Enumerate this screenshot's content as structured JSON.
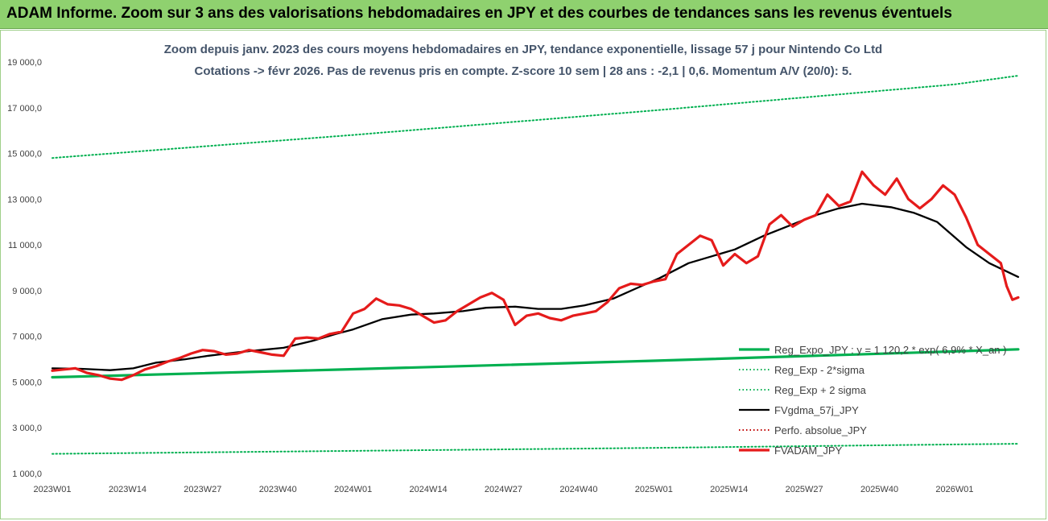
{
  "header": {
    "title": "ADAM Informe. Zoom sur 3 ans des valorisations hebdomadaires en JPY et des courbes de tendances sans les revenus éventuels"
  },
  "chart_data": {
    "type": "line",
    "title": "Zoom depuis janv. 2023 des cours moyens hebdomadaires en JPY, tendance exponentielle, lissage 57 j pour Nintendo Co Ltd",
    "subtitle": "Cotations -> févr 2026. Pas de revenus pris en compte. Z-score 10 sem | 28 ans : -2,1 | 0,6. Momentum A/V (20/0): 5.",
    "x_ticks": [
      "2023W01",
      "2023W14",
      "2023W27",
      "2023W40",
      "2024W01",
      "2024W14",
      "2024W27",
      "2024W40",
      "2025W01",
      "2025W14",
      "2025W27",
      "2025W40",
      "2026W01"
    ],
    "y_ticks": [
      "1 000,0",
      "3 000,0",
      "5 000,0",
      "7 000,0",
      "9 000,0",
      "11 000,0",
      "13 000,0",
      "15 000,0",
      "17 000,0",
      "19 000,0"
    ],
    "ylim": [
      1000,
      19000
    ],
    "grid": false,
    "legend_position": "bottom-right",
    "series": [
      {
        "name": "Reg_Expo_JPY : y = 1 120,2 * exp( 6,9% * X_an )",
        "color": "#00b050",
        "style": "solid-thick",
        "values": [
          [
            0,
            5210
          ],
          [
            52,
            5560
          ],
          [
            104,
            5930
          ],
          [
            156,
            6340
          ],
          [
            167,
            6430
          ]
        ]
      },
      {
        "name": "Reg_Exp - 2*sigma",
        "color": "#00b050",
        "style": "dotted",
        "values": [
          [
            0,
            1860
          ],
          [
            52,
            1990
          ],
          [
            104,
            2120
          ],
          [
            156,
            2270
          ],
          [
            167,
            2300
          ]
        ]
      },
      {
        "name": "Reg_Exp + 2 sigma",
        "color": "#00b050",
        "style": "dotted",
        "values": [
          [
            0,
            14800
          ],
          [
            52,
            15810
          ],
          [
            104,
            16880
          ],
          [
            156,
            18020
          ],
          [
            167,
            18400
          ]
        ]
      },
      {
        "name": "FVgdma_57j_JPY",
        "color": "#000000",
        "style": "solid",
        "values": [
          [
            0,
            5600
          ],
          [
            5,
            5580
          ],
          [
            10,
            5520
          ],
          [
            14,
            5600
          ],
          [
            18,
            5850
          ],
          [
            23,
            6000
          ],
          [
            27,
            6150
          ],
          [
            32,
            6300
          ],
          [
            36,
            6400
          ],
          [
            40,
            6500
          ],
          [
            45,
            6800
          ],
          [
            49,
            7100
          ],
          [
            52,
            7300
          ],
          [
            57,
            7750
          ],
          [
            62,
            7950
          ],
          [
            66,
            8000
          ],
          [
            71,
            8100
          ],
          [
            75,
            8250
          ],
          [
            80,
            8300
          ],
          [
            84,
            8200
          ],
          [
            88,
            8200
          ],
          [
            92,
            8350
          ],
          [
            97,
            8650
          ],
          [
            101,
            9100
          ],
          [
            105,
            9550
          ],
          [
            110,
            10200
          ],
          [
            114,
            10500
          ],
          [
            118,
            10800
          ],
          [
            123,
            11400
          ],
          [
            127,
            11800
          ],
          [
            132,
            12300
          ],
          [
            136,
            12600
          ],
          [
            140,
            12800
          ],
          [
            145,
            12650
          ],
          [
            149,
            12400
          ],
          [
            153,
            12000
          ],
          [
            158,
            10900
          ],
          [
            162,
            10200
          ],
          [
            167,
            9600
          ]
        ]
      },
      {
        "name": "Perfo. absolue_JPY",
        "color": "#c00000",
        "style": "dotted",
        "values": []
      },
      {
        "name": "FVADAM_JPY",
        "color": "#e51b1b",
        "style": "solid-thick",
        "values": [
          [
            0,
            5500
          ],
          [
            2,
            5550
          ],
          [
            4,
            5600
          ],
          [
            6,
            5400
          ],
          [
            8,
            5300
          ],
          [
            10,
            5150
          ],
          [
            12,
            5100
          ],
          [
            14,
            5300
          ],
          [
            16,
            5550
          ],
          [
            18,
            5700
          ],
          [
            20,
            5900
          ],
          [
            22,
            6050
          ],
          [
            24,
            6250
          ],
          [
            26,
            6400
          ],
          [
            28,
            6350
          ],
          [
            30,
            6200
          ],
          [
            32,
            6250
          ],
          [
            34,
            6400
          ],
          [
            36,
            6300
          ],
          [
            38,
            6200
          ],
          [
            40,
            6150
          ],
          [
            42,
            6900
          ],
          [
            44,
            6950
          ],
          [
            46,
            6900
          ],
          [
            48,
            7100
          ],
          [
            50,
            7200
          ],
          [
            52,
            8000
          ],
          [
            54,
            8200
          ],
          [
            56,
            8650
          ],
          [
            58,
            8400
          ],
          [
            60,
            8350
          ],
          [
            62,
            8200
          ],
          [
            64,
            7900
          ],
          [
            66,
            7600
          ],
          [
            68,
            7700
          ],
          [
            70,
            8100
          ],
          [
            72,
            8400
          ],
          [
            74,
            8700
          ],
          [
            76,
            8900
          ],
          [
            78,
            8600
          ],
          [
            80,
            7500
          ],
          [
            82,
            7900
          ],
          [
            84,
            8000
          ],
          [
            86,
            7800
          ],
          [
            88,
            7700
          ],
          [
            90,
            7900
          ],
          [
            92,
            8000
          ],
          [
            94,
            8100
          ],
          [
            96,
            8500
          ],
          [
            98,
            9100
          ],
          [
            100,
            9300
          ],
          [
            102,
            9250
          ],
          [
            104,
            9400
          ],
          [
            106,
            9500
          ],
          [
            108,
            10600
          ],
          [
            110,
            11000
          ],
          [
            112,
            11400
          ],
          [
            114,
            11200
          ],
          [
            116,
            10100
          ],
          [
            118,
            10600
          ],
          [
            120,
            10200
          ],
          [
            122,
            10500
          ],
          [
            124,
            11900
          ],
          [
            126,
            12300
          ],
          [
            128,
            11800
          ],
          [
            130,
            12100
          ],
          [
            132,
            12300
          ],
          [
            134,
            13200
          ],
          [
            136,
            12700
          ],
          [
            138,
            12900
          ],
          [
            140,
            14200
          ],
          [
            142,
            13600
          ],
          [
            144,
            13200
          ],
          [
            146,
            13900
          ],
          [
            148,
            13000
          ],
          [
            150,
            12600
          ],
          [
            152,
            13000
          ],
          [
            154,
            13600
          ],
          [
            156,
            13200
          ],
          [
            158,
            12200
          ],
          [
            160,
            11000
          ],
          [
            162,
            10600
          ],
          [
            164,
            10200
          ],
          [
            165,
            9200
          ],
          [
            166,
            8600
          ],
          [
            167,
            8700
          ]
        ]
      }
    ]
  }
}
